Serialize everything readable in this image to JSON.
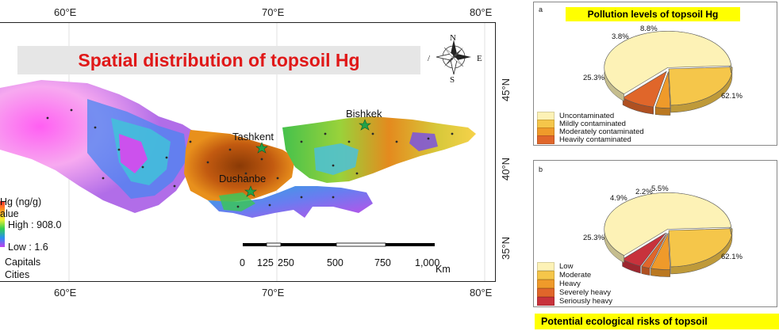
{
  "map": {
    "title": "Spatial distribution of topsoil Hg",
    "lon_labels": [
      "60°E",
      "70°E",
      "80°E"
    ],
    "lat_labels": [
      "45°N",
      "40°N",
      "35°N"
    ],
    "cities": [
      "Bishkek",
      "Tashkent",
      "Dushanbe"
    ],
    "legend": {
      "title": "Hg (ng/g)",
      "value_label": "alue",
      "high": "High : 908.0",
      "low": "Low : 1.6",
      "capitals": "Capitals",
      "cities": "Cities"
    },
    "scale_bar": {
      "ticks": [
        "0",
        "125",
        "250",
        "500",
        "750",
        "1,000"
      ],
      "unit": "Km"
    },
    "compass": {
      "n": "N",
      "e": "E",
      "s": "S",
      "w": "/"
    }
  },
  "panel_a": {
    "letter": "a",
    "title": "Pollution levels of topsoil Hg",
    "legend": [
      "Uncontaminated",
      "Mildly contaminated",
      "Moderately contaminated",
      "Heavily contaminated"
    ],
    "labels": [
      "62.1%",
      "25.3%",
      "3.8%",
      "8.8%"
    ]
  },
  "panel_b": {
    "letter": "b",
    "legend": [
      "Low",
      "Moderate",
      "Heavy",
      "Severely heavy",
      "Seriously heavy"
    ],
    "labels": [
      "62.1%",
      "25.3%",
      "4.9%",
      "2.2%",
      "5.5%"
    ],
    "bottom_title": "Potential ecological risks of topsoil"
  },
  "chart_data": [
    {
      "type": "pie",
      "title": "Pollution levels of topsoil Hg",
      "categories": [
        "Uncontaminated",
        "Mildly contaminated",
        "Moderately contaminated",
        "Heavily contaminated"
      ],
      "values": [
        62.1,
        25.3,
        3.8,
        8.8
      ],
      "colors": [
        "#fdf2b6",
        "#f5c64a",
        "#ef9a2a",
        "#e0662a"
      ],
      "legend_position": "bottom-left"
    },
    {
      "type": "pie",
      "title": "Potential ecological risks of topsoil",
      "categories": [
        "Low",
        "Moderate",
        "Heavy",
        "Severely heavy",
        "Seriously heavy"
      ],
      "values": [
        62.1,
        25.3,
        4.9,
        2.2,
        5.5
      ],
      "colors": [
        "#fdf2b6",
        "#f5c64a",
        "#ef9a2a",
        "#e0662a",
        "#c8323c"
      ],
      "legend_position": "bottom-left"
    }
  ]
}
